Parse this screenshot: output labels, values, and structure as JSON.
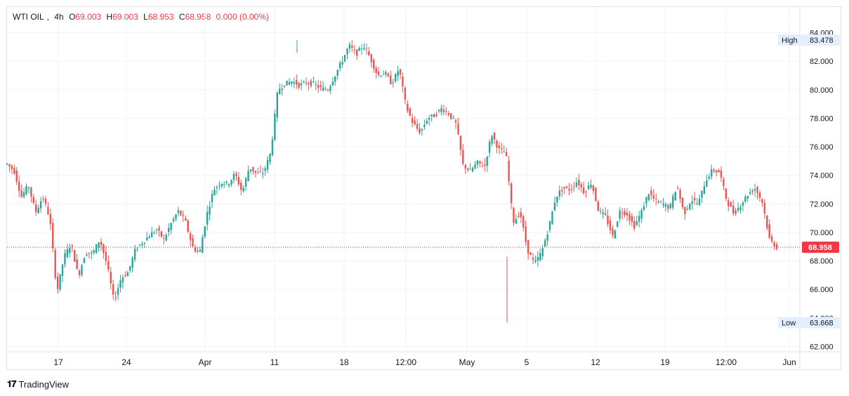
{
  "legend": {
    "symbol": "WTI OIL",
    "interval": "4h",
    "open_label": "O",
    "open": "69.003",
    "high_label": "H",
    "high": "69.003",
    "low_label": "L",
    "low": "68.953",
    "close_label": "C",
    "close": "68.958",
    "change": "0.000 (0.00%)"
  },
  "brand": {
    "name": "TradingView",
    "icon": "tradingview-logo-icon"
  },
  "colors": {
    "up": "#26a69a",
    "down": "#ef5350",
    "price_line": "#f23645",
    "grid": "#f0f3fa",
    "axis_text": "#131722"
  },
  "chart_data": {
    "type": "candlestick",
    "interval": "4h",
    "ylim": [
      61.5,
      84.7
    ],
    "y_ticks": [
      "62.000",
      "64.000",
      "66.000",
      "68.000",
      "70.000",
      "72.000",
      "74.000",
      "76.000",
      "78.000",
      "80.000",
      "82.000",
      "84.000"
    ],
    "x_ticks": [
      "17",
      "24",
      "Apr",
      "11",
      "18",
      "12:00",
      "May",
      "5",
      "12",
      "19",
      "12:00",
      "Jun"
    ],
    "grid": true,
    "high_marker": {
      "label": "High",
      "value": "83.478"
    },
    "low_marker": {
      "label": "Low",
      "value": "63.668"
    },
    "last_price": "68.958",
    "path": [
      74.8,
      74.3,
      72.5,
      73.3,
      71.4,
      72.5,
      71.0,
      65.8,
      68.3,
      69.2,
      66.9,
      68.6,
      68.5,
      69.5,
      67.8,
      65.2,
      66.8,
      67.2,
      68.8,
      69.3,
      69.8,
      70.2,
      69.5,
      70.6,
      71.5,
      70.8,
      69.0,
      68.5,
      71.2,
      73.0,
      73.5,
      73.4,
      74.1,
      72.8,
      74.6,
      74.1,
      74.2,
      75.6,
      80.0,
      80.4,
      80.6,
      80.3,
      80.5,
      80.4,
      80.1,
      80.0,
      81.0,
      82.0,
      83.1,
      82.5,
      83.1,
      82.2,
      81.0,
      81.2,
      80.4,
      81.5,
      78.8,
      77.6,
      77.0,
      78.0,
      78.2,
      78.7,
      78.3,
      77.6,
      74.7,
      74.3,
      74.9,
      74.6,
      76.9,
      75.8,
      75.6,
      70.7,
      71.4,
      68.8,
      67.8,
      68.6,
      70.3,
      72.5,
      73.1,
      73.0,
      73.6,
      72.8,
      73.5,
      71.5,
      71.1,
      69.7,
      71.5,
      71.3,
      70.4,
      71.4,
      72.8,
      72.2,
      72.0,
      71.7,
      73.3,
      71.3,
      72.3,
      72.0,
      73.6,
      74.4,
      74.2,
      72.2,
      71.3,
      72.0,
      72.7,
      73.1,
      72.1,
      69.5,
      68.96
    ]
  }
}
